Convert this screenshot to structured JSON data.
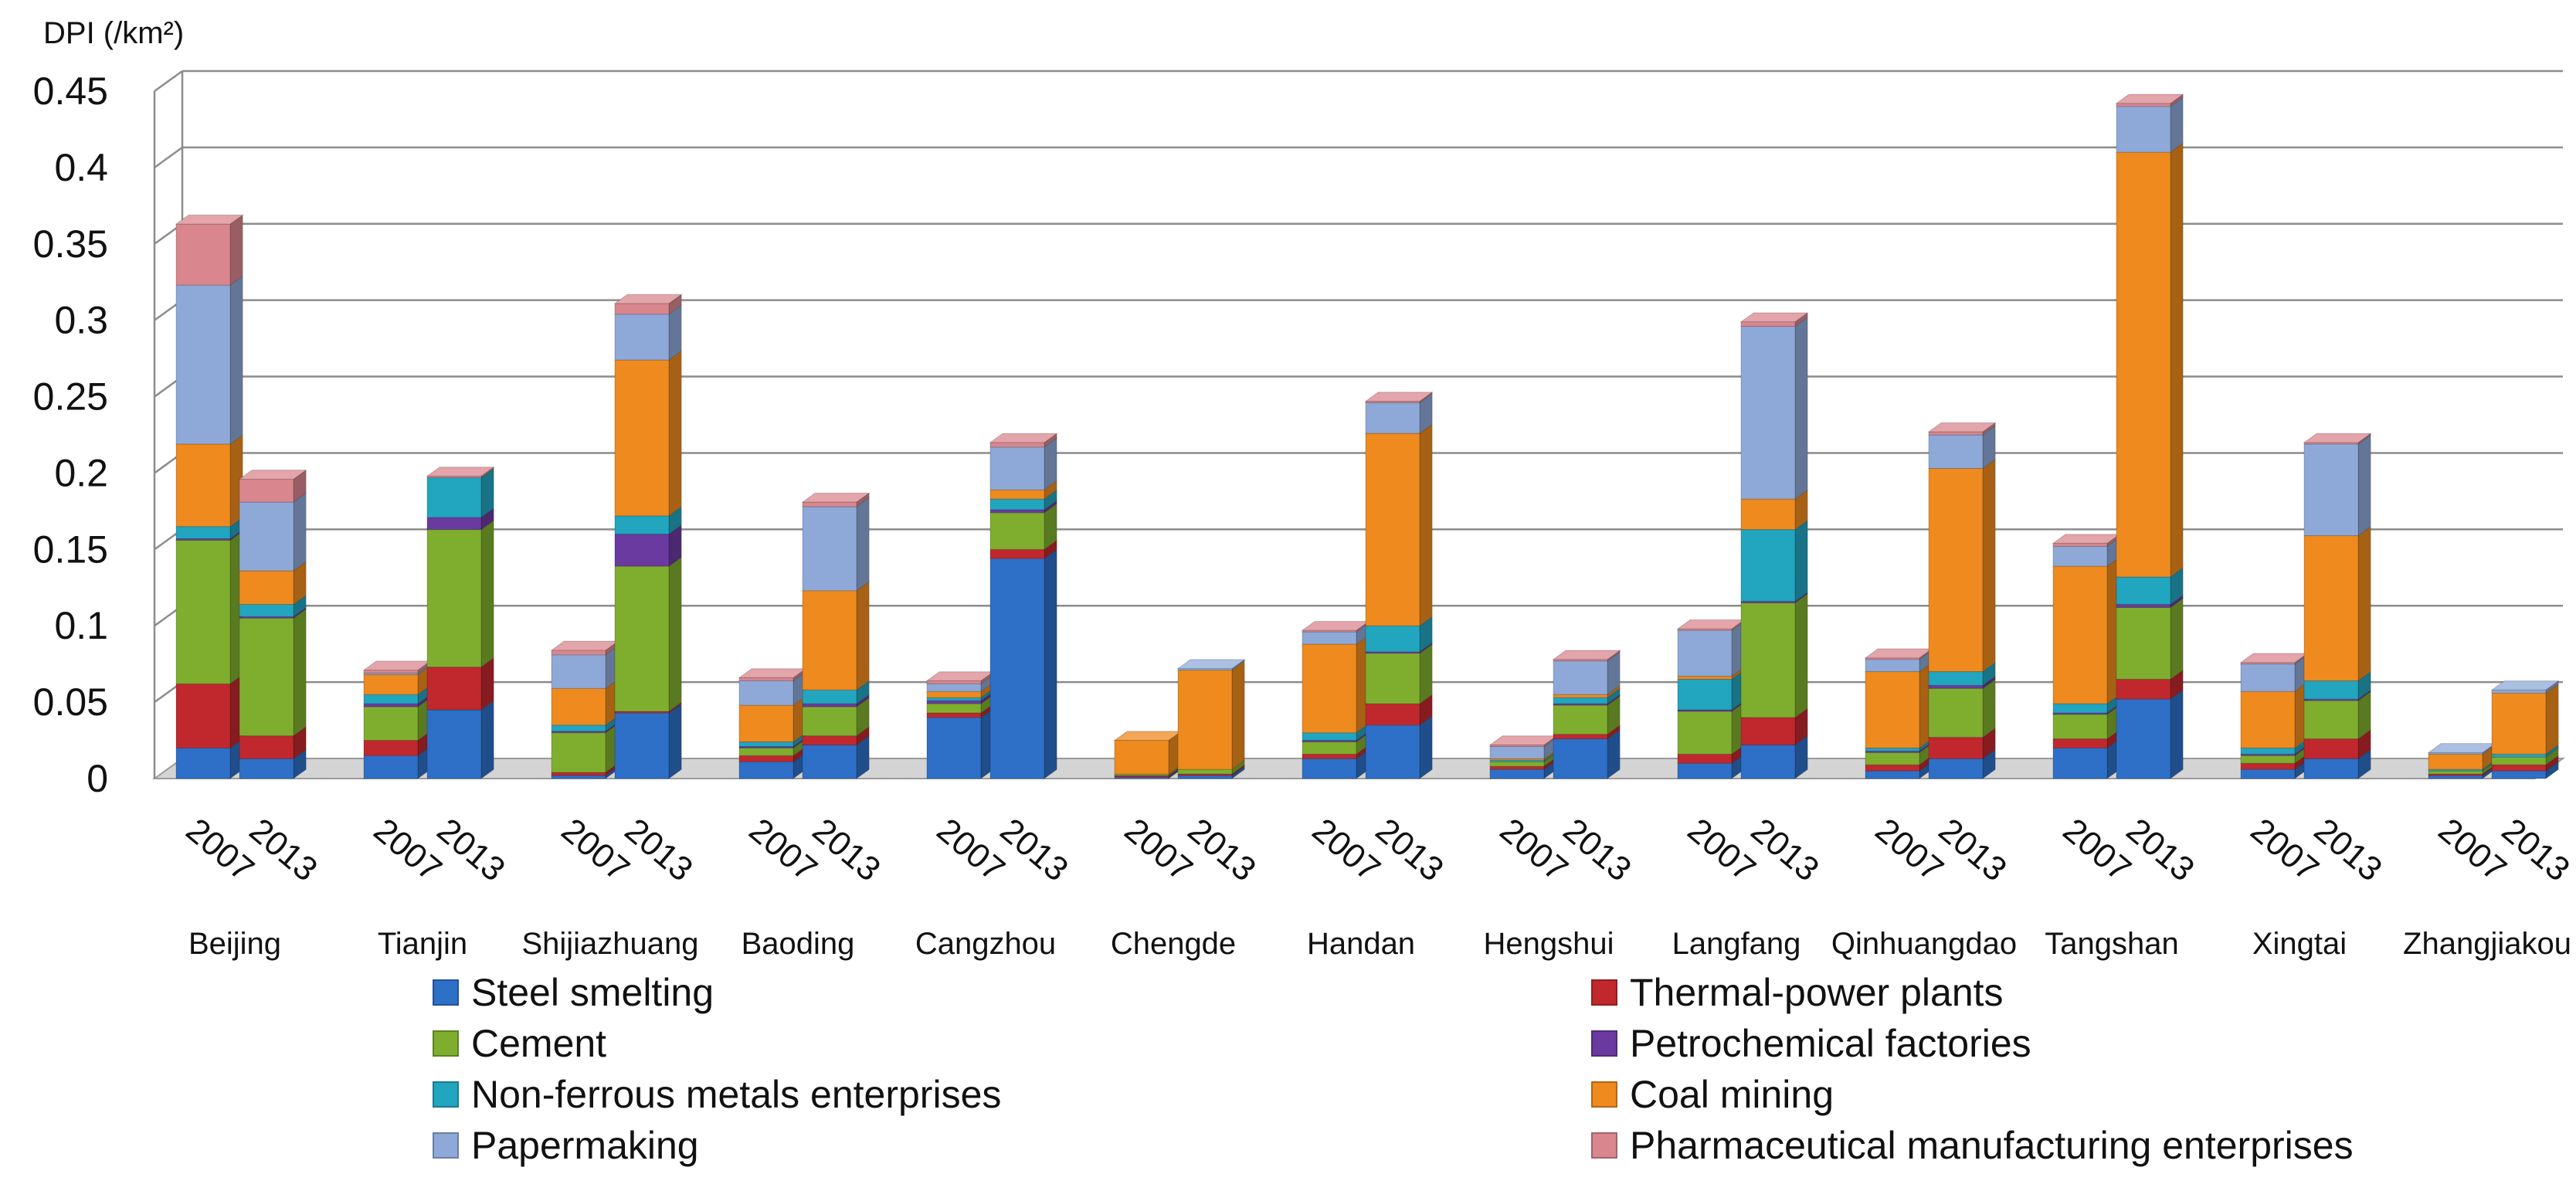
{
  "chart_data": {
    "type": "bar",
    "stacked": true,
    "three_d": true,
    "ylabel": "DPI (/km²)",
    "ylim": [
      0,
      0.45
    ],
    "yticks": [
      "0",
      "0.05",
      "0.1",
      "0.15",
      "0.2",
      "0.25",
      "0.3",
      "0.35",
      "0.4",
      "0.45"
    ],
    "grid": true,
    "legend_position": "bottom",
    "cities": [
      "Beijing",
      "Tianjin",
      "Shijiazhuang",
      "Baoding",
      "Cangzhou",
      "Chengde",
      "Handan",
      "Hengshui",
      "Langfang",
      "Qinhuangdao",
      "Tangshan",
      "Xingtai",
      "Zhangjiakou"
    ],
    "years": [
      "2007",
      "2013"
    ],
    "series": [
      {
        "name": "Steel smelting",
        "color": "#2e6fc7",
        "values": [
          [
            0.02,
            0.013
          ],
          [
            0.015,
            0.045
          ],
          [
            0.002,
            0.043
          ],
          [
            0.011,
            0.022
          ],
          [
            0.04,
            0.144
          ],
          [
            0.001,
            0.002
          ],
          [
            0.013,
            0.035
          ],
          [
            0.006,
            0.026
          ],
          [
            0.01,
            0.022
          ],
          [
            0.005,
            0.013
          ],
          [
            0.02,
            0.052
          ],
          [
            0.006,
            0.013
          ],
          [
            0.002,
            0.005
          ]
        ]
      },
      {
        "name": "Thermal-power plants",
        "color": "#c0282e",
        "values": [
          [
            0.042,
            0.015
          ],
          [
            0.01,
            0.028
          ],
          [
            0.002,
            0.001
          ],
          [
            0.004,
            0.006
          ],
          [
            0.003,
            0.006
          ],
          [
            0.001,
            0.001
          ],
          [
            0.003,
            0.014
          ],
          [
            0.002,
            0.003
          ],
          [
            0.006,
            0.018
          ],
          [
            0.004,
            0.014
          ],
          [
            0.006,
            0.013
          ],
          [
            0.004,
            0.013
          ],
          [
            0.001,
            0.004
          ]
        ]
      },
      {
        "name": "Cement",
        "color": "#7fae2e",
        "values": [
          [
            0.094,
            0.077
          ],
          [
            0.022,
            0.09
          ],
          [
            0.026,
            0.095
          ],
          [
            0.005,
            0.019
          ],
          [
            0.006,
            0.024
          ],
          [
            0.001,
            0.003
          ],
          [
            0.008,
            0.033
          ],
          [
            0.003,
            0.019
          ],
          [
            0.028,
            0.075
          ],
          [
            0.008,
            0.032
          ],
          [
            0.016,
            0.047
          ],
          [
            0.005,
            0.025
          ],
          [
            0.002,
            0.005
          ]
        ]
      },
      {
        "name": "Petrochemical factories",
        "color": "#6b3aa0",
        "values": [
          [
            0.001,
            0.001
          ],
          [
            0.002,
            0.008
          ],
          [
            0.001,
            0.021
          ],
          [
            0.001,
            0.002
          ],
          [
            0.002,
            0.002
          ],
          [
            0,
            0
          ],
          [
            0.001,
            0.001
          ],
          [
            0,
            0.001
          ],
          [
            0.001,
            0.001
          ],
          [
            0.001,
            0.002
          ],
          [
            0.001,
            0.002
          ],
          [
            0.001,
            0.001
          ],
          [
            0,
            0
          ]
        ]
      },
      {
        "name": "Non-ferrous metals enterprises",
        "color": "#22a5bf",
        "values": [
          [
            0.008,
            0.008
          ],
          [
            0.006,
            0.026
          ],
          [
            0.004,
            0.012
          ],
          [
            0.003,
            0.009
          ],
          [
            0.002,
            0.007
          ],
          [
            0,
            0
          ],
          [
            0.005,
            0.017
          ],
          [
            0.001,
            0.004
          ],
          [
            0.02,
            0.047
          ],
          [
            0.002,
            0.009
          ],
          [
            0.006,
            0.018
          ],
          [
            0.004,
            0.012
          ],
          [
            0.001,
            0.002
          ]
        ]
      },
      {
        "name": "Coal mining",
        "color": "#ee8a1e",
        "values": [
          [
            0.054,
            0.022
          ],
          [
            0.013,
            0
          ],
          [
            0.024,
            0.102
          ],
          [
            0.024,
            0.065
          ],
          [
            0.004,
            0.006
          ],
          [
            0.022,
            0.065
          ],
          [
            0.058,
            0.126
          ],
          [
            0.001,
            0.002
          ],
          [
            0.002,
            0.02
          ],
          [
            0.05,
            0.133
          ],
          [
            0.09,
            0.278
          ],
          [
            0.037,
            0.095
          ],
          [
            0.01,
            0.04
          ]
        ]
      },
      {
        "name": "Papermaking",
        "color": "#8ea9d8",
        "values": [
          [
            0.104,
            0.045
          ],
          [
            0.001,
            0
          ],
          [
            0.022,
            0.03
          ],
          [
            0.016,
            0.055
          ],
          [
            0.005,
            0.028
          ],
          [
            0,
            0.001
          ],
          [
            0.008,
            0.02
          ],
          [
            0.008,
            0.022
          ],
          [
            0.03,
            0.113
          ],
          [
            0.008,
            0.022
          ],
          [
            0.013,
            0.03
          ],
          [
            0.018,
            0.06
          ],
          [
            0.001,
            0.002
          ]
        ]
      },
      {
        "name": "Pharmaceutical manufacturing enterprises",
        "color": "#d9868e",
        "values": [
          [
            0.04,
            0.015
          ],
          [
            0.002,
            0.001
          ],
          [
            0.003,
            0.007
          ],
          [
            0.002,
            0.003
          ],
          [
            0.002,
            0.003
          ],
          [
            0,
            0
          ],
          [
            0.001,
            0.001
          ],
          [
            0.001,
            0.001
          ],
          [
            0.001,
            0.003
          ],
          [
            0.001,
            0.002
          ],
          [
            0.002,
            0.002
          ],
          [
            0.001,
            0.001
          ],
          [
            0,
            0
          ]
        ]
      }
    ]
  }
}
